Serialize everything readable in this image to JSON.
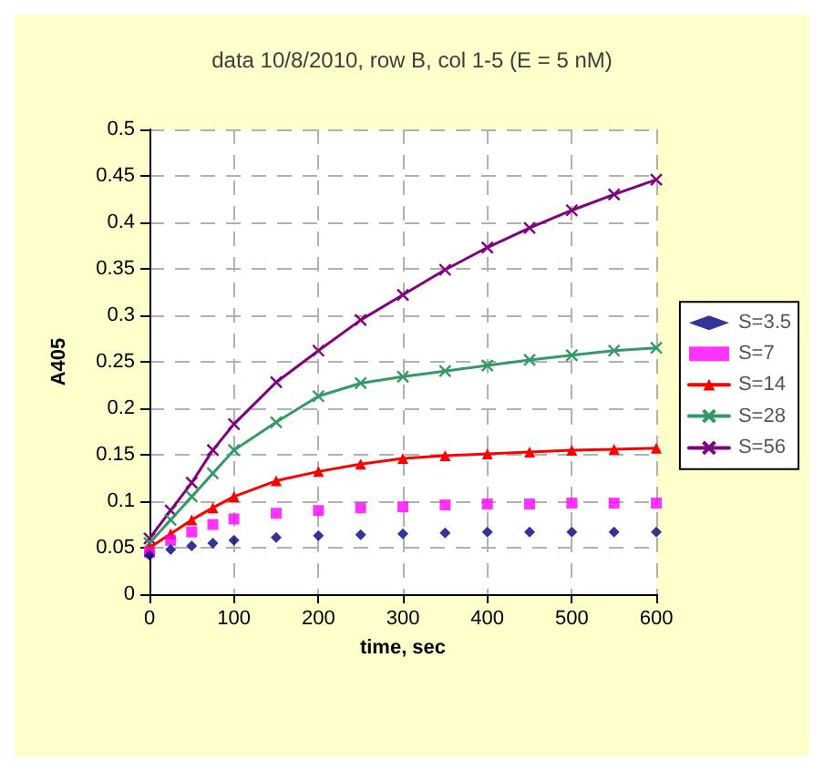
{
  "chart_data": {
    "type": "line",
    "title": "data 10/8/2010, row B, col 1-5 (E = 5 nM)",
    "xlabel": "time, sec",
    "ylabel": "A405",
    "x": [
      0,
      25,
      50,
      75,
      100,
      150,
      200,
      250,
      300,
      350,
      400,
      450,
      500,
      550,
      600
    ],
    "series": [
      {
        "name": "S=3.5",
        "type": "scatter",
        "marker": "diamond",
        "color": "#000080",
        "values": [
          0.042,
          0.048,
          0.052,
          0.055,
          0.058,
          0.061,
          0.063,
          0.064,
          0.065,
          0.066,
          0.067,
          0.067,
          0.067,
          0.067,
          0.067
        ]
      },
      {
        "name": "S=7",
        "type": "scatter",
        "marker": "square",
        "color": "#ff00ff",
        "values": [
          0.045,
          0.058,
          0.067,
          0.075,
          0.081,
          0.087,
          0.09,
          0.093,
          0.094,
          0.096,
          0.097,
          0.097,
          0.098,
          0.098,
          0.098
        ]
      },
      {
        "name": "S=14",
        "marker": "triangle",
        "color": "#ff0000",
        "values": [
          0.05,
          0.065,
          0.08,
          0.093,
          0.105,
          0.122,
          0.132,
          0.14,
          0.146,
          0.149,
          0.151,
          0.153,
          0.155,
          0.156,
          0.157
        ]
      },
      {
        "name": "S=28",
        "marker": "cross",
        "color": "#339966",
        "values": [
          0.055,
          0.08,
          0.105,
          0.13,
          0.155,
          0.185,
          0.213,
          0.227,
          0.234,
          0.24,
          0.246,
          0.252,
          0.257,
          0.262,
          0.265
        ]
      },
      {
        "name": "S=56",
        "marker": "cross",
        "color": "#800080",
        "values": [
          0.06,
          0.09,
          0.12,
          0.155,
          0.183,
          0.228,
          0.262,
          0.295,
          0.322,
          0.349,
          0.373,
          0.394,
          0.413,
          0.43,
          0.446
        ]
      }
    ],
    "xlim": [
      0,
      600
    ],
    "xticks": [
      0,
      100,
      200,
      300,
      400,
      500,
      600
    ],
    "ylim": [
      0,
      0.5
    ],
    "yticks": [
      0,
      0.05,
      0.1,
      0.15,
      0.2,
      0.25,
      0.3,
      0.35,
      0.4,
      0.45,
      0.5
    ],
    "grid": true,
    "legend": "right",
    "line_style": "solid"
  }
}
